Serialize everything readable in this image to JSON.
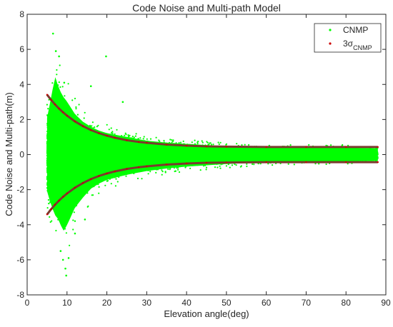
{
  "chart_data": {
    "type": "scatter",
    "title": "Code Noise and Multi-path Model",
    "xlabel": "Elevation angle(deg)",
    "ylabel": "Code Noise and Multi-path(m)",
    "xlim": [
      0,
      90
    ],
    "ylim": [
      -8,
      8
    ],
    "xticks": [
      0,
      10,
      20,
      30,
      40,
      50,
      60,
      70,
      80,
      90
    ],
    "yticks": [
      -8,
      -6,
      -4,
      -2,
      0,
      2,
      4,
      6,
      8
    ],
    "grid": false,
    "legend_position": "top-right",
    "series": [
      {
        "name": "CNMP",
        "kind": "scatter",
        "color": "#00ff00",
        "envelope": {
          "x": [
            5,
            6,
            7,
            8,
            9,
            10,
            12,
            14,
            16,
            18,
            20,
            25,
            30,
            35,
            40,
            50,
            60,
            70,
            80,
            88
          ],
          "upper": [
            2.9,
            4.5,
            6.2,
            5.2,
            4.6,
            4.2,
            3.2,
            2.6,
            2.2,
            1.9,
            1.7,
            1.4,
            1.1,
            0.95,
            0.85,
            0.65,
            0.55,
            0.55,
            0.55,
            0.5
          ],
          "lower": [
            -2.9,
            -4.0,
            -4.8,
            -5.2,
            -6.1,
            -5.6,
            -4.2,
            -3.4,
            -2.7,
            -2.3,
            -2.0,
            -1.6,
            -1.3,
            -1.1,
            -0.95,
            -0.75,
            -0.6,
            -0.55,
            -0.55,
            -0.5
          ]
        },
        "outliers": [
          {
            "x": 6.5,
            "y": 6.9
          },
          {
            "x": 7.2,
            "y": 5.9
          },
          {
            "x": 8.0,
            "y": 5.6
          },
          {
            "x": 9.3,
            "y": 4.1
          },
          {
            "x": 19.8,
            "y": 5.6
          },
          {
            "x": 16.0,
            "y": 3.9
          },
          {
            "x": 24.0,
            "y": 3.0
          },
          {
            "x": 9.0,
            "y": -6.0
          },
          {
            "x": 9.6,
            "y": -6.5
          },
          {
            "x": 9.8,
            "y": -6.9
          },
          {
            "x": 10.4,
            "y": -5.9
          },
          {
            "x": 8.4,
            "y": -5.5
          },
          {
            "x": 12.0,
            "y": -4.5
          },
          {
            "x": 14.5,
            "y": -3.7
          }
        ]
      },
      {
        "name": "3σCNMP",
        "kind": "line",
        "color": "#7a3b2e",
        "marker_color": "#cc0000",
        "x": [
          5,
          6,
          7,
          8,
          9,
          10,
          12,
          14,
          16,
          18,
          20,
          22,
          25,
          28,
          30,
          35,
          40,
          45,
          50,
          60,
          70,
          80,
          88
        ],
        "upper": [
          3.41,
          3.12,
          2.86,
          2.62,
          2.41,
          2.22,
          1.89,
          1.62,
          1.4,
          1.22,
          1.08,
          0.96,
          0.82,
          0.72,
          0.67,
          0.57,
          0.51,
          0.47,
          0.45,
          0.43,
          0.43,
          0.43,
          0.43
        ],
        "lower": [
          -3.41,
          -3.12,
          -2.86,
          -2.62,
          -2.41,
          -2.22,
          -1.89,
          -1.62,
          -1.4,
          -1.22,
          -1.08,
          -0.96,
          -0.82,
          -0.72,
          -0.67,
          -0.57,
          -0.51,
          -0.47,
          -0.45,
          -0.43,
          -0.43,
          -0.43,
          -0.43
        ]
      }
    ]
  }
}
